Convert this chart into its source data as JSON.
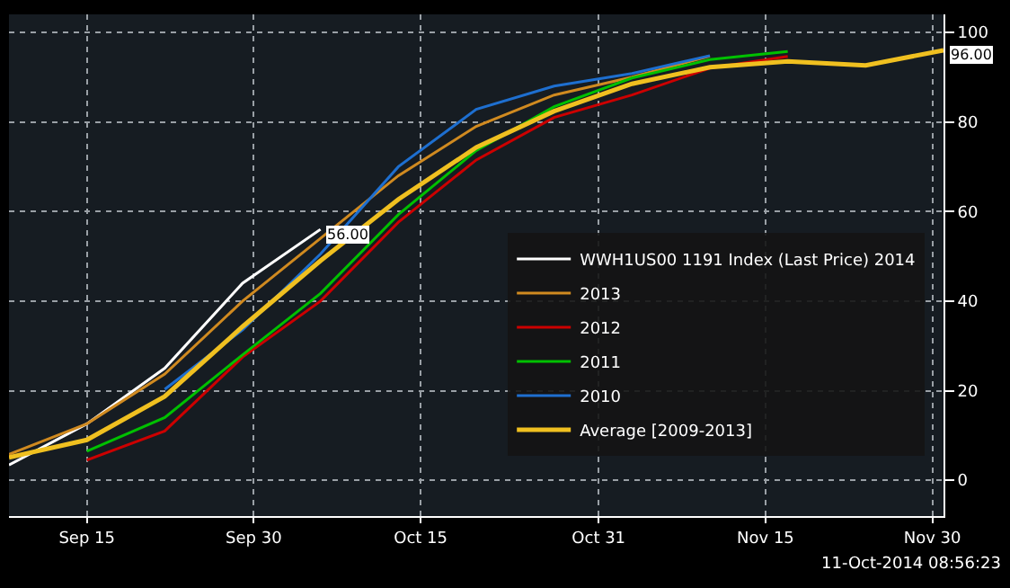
{
  "chart_data": {
    "type": "line",
    "annotations": [
      {
        "text": "96.00",
        "x": "2014-12-01",
        "y": 96
      },
      {
        "text": "56.00",
        "x": "2014-10-06",
        "y": 56
      },
      "11-Oct-2014 08:56:23"
    ],
    "xlim": [
      "2014-09-08",
      "2014-12-01"
    ],
    "xticks": [
      {
        "value": "2014-09-15",
        "label": "Sep 15"
      },
      {
        "value": "2014-09-30",
        "label": "Sep 30"
      },
      {
        "value": "2014-10-15",
        "label": "Oct 15"
      },
      {
        "value": "2014-10-31",
        "label": "Oct 31"
      },
      {
        "value": "2014-11-15",
        "label": "Nov 15"
      },
      {
        "value": "2014-11-30",
        "label": "Nov 30"
      }
    ],
    "ylim": [
      -8,
      104
    ],
    "yticks": [
      0,
      20,
      40,
      60,
      80,
      100
    ],
    "grid": true,
    "legend": "bottom right",
    "marker": "none",
    "line_style": "solid",
    "series": [
      {
        "name": "WWH1US00 1191 Index (Last Price) 2014",
        "color": "#ffffff",
        "x": [
          "2014-09-08",
          "2014-09-15",
          "2014-09-22",
          "2014-09-29",
          "2014-10-06"
        ],
        "values": [
          3.4,
          12.6,
          25,
          44,
          56
        ]
      },
      {
        "name": "2013",
        "color": "#d08a20",
        "x": [
          "2014-09-08",
          "2014-09-15",
          "2014-09-22",
          "2014-09-29",
          "2014-10-06",
          "2014-10-13",
          "2014-10-20",
          "2014-10-27",
          "2014-11-03",
          "2014-11-10"
        ],
        "values": [
          5.8,
          12.6,
          23.7,
          40,
          54,
          68,
          79,
          86,
          90,
          94.7
        ]
      },
      {
        "name": "2012",
        "color": "#cc0000",
        "x": [
          "2014-09-15",
          "2014-09-22",
          "2014-09-29",
          "2014-10-06",
          "2014-10-13",
          "2014-10-20",
          "2014-10-27",
          "2014-11-03",
          "2014-11-10",
          "2014-11-17"
        ],
        "values": [
          4.5,
          11,
          27.5,
          40,
          57.6,
          71.5,
          81,
          86,
          92,
          94.6
        ]
      },
      {
        "name": "2011",
        "color": "#00c000",
        "x": [
          "2014-09-15",
          "2014-09-22",
          "2014-09-29",
          "2014-10-06",
          "2014-10-13",
          "2014-10-20",
          "2014-10-27",
          "2014-11-03",
          "2014-11-10",
          "2014-11-17"
        ],
        "values": [
          6.5,
          14,
          28,
          41.7,
          59.3,
          73.6,
          83.4,
          89.8,
          93.9,
          95.7
        ]
      },
      {
        "name": "2010",
        "color": "#1e6fd0",
        "x": [
          "2014-09-22",
          "2014-09-29",
          "2014-10-06",
          "2014-10-13",
          "2014-10-20",
          "2014-10-27",
          "2014-11-03",
          "2014-11-10"
        ],
        "values": [
          20.3,
          33.6,
          50.5,
          70,
          82.8,
          88,
          90.8,
          94.8
        ]
      },
      {
        "name": "Average [2009-2013]",
        "color": "#f0c020",
        "x": [
          "2014-09-08",
          "2014-09-15",
          "2014-09-22",
          "2014-09-29",
          "2014-10-06",
          "2014-10-13",
          "2014-10-20",
          "2014-10-27",
          "2014-11-03",
          "2014-11-10",
          "2014-11-17",
          "2014-11-24",
          "2014-12-01"
        ],
        "values": [
          5.1,
          9,
          18.7,
          34.3,
          49,
          62.7,
          74.3,
          82.4,
          88.5,
          92.2,
          93.5,
          92.6,
          96
        ]
      }
    ]
  }
}
